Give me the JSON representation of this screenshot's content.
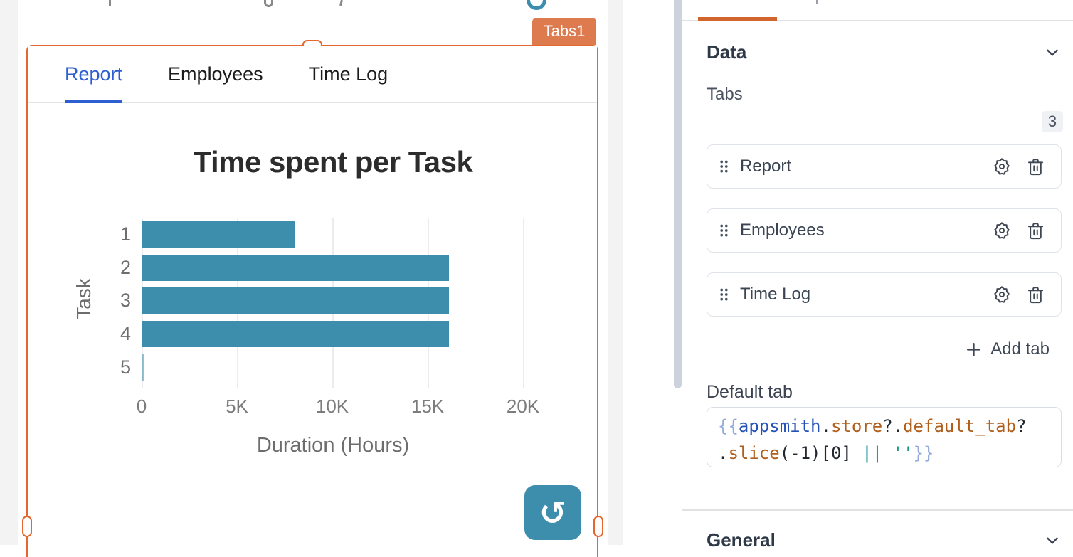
{
  "canvas": {
    "widget_badge": "Tabs1",
    "tab_widget_tabs": [
      {
        "label": "Report",
        "active": true
      },
      {
        "label": "Employees",
        "active": false
      },
      {
        "label": "Time Log",
        "active": false
      }
    ],
    "refresh_glyph": "↺"
  },
  "chart_data": {
    "type": "bar",
    "orientation": "horizontal",
    "title": "Time spent per Task",
    "categories": [
      "1",
      "2",
      "3",
      "4",
      "5"
    ],
    "values": [
      8060,
      16120,
      16120,
      16120,
      100
    ],
    "xlabel": "Duration (Hours)",
    "ylabel": "Task",
    "xlim": [
      0,
      20000
    ],
    "xticks": [
      {
        "label": "0",
        "value": 0
      },
      {
        "label": "5K",
        "value": 5000
      },
      {
        "label": "10K",
        "value": 10000
      },
      {
        "label": "15K",
        "value": 15000
      },
      {
        "label": "20K",
        "value": 20000
      }
    ],
    "grid": true,
    "legend": false,
    "bar_color": "#3d8ead"
  },
  "property_pane": {
    "data_section_title": "Data",
    "general_section_title": "General",
    "tabs_field_label": "Tabs",
    "tabs_count": "3",
    "tab_items": [
      {
        "label": "Report"
      },
      {
        "label": "Employees"
      },
      {
        "label": "Time Log"
      }
    ],
    "add_tab_label": "Add tab",
    "default_tab_label": "Default tab",
    "default_tab_code_text": "{{appsmith.store?.default_tab?.slice(-1)[0] || ''}}",
    "default_tab_code_lines": [
      [
        {
          "t": "{{",
          "s": "brace"
        },
        {
          "t": "appsmith",
          "s": "var"
        },
        {
          "t": ".",
          "s": "punct"
        },
        {
          "t": "store",
          "s": "prop"
        },
        {
          "t": "?.",
          "s": "punct"
        },
        {
          "t": "default_tab",
          "s": "prop"
        },
        {
          "t": "?",
          "s": "punct"
        }
      ],
      [
        {
          "t": ".",
          "s": "punct"
        },
        {
          "t": "slice",
          "s": "prop"
        },
        {
          "t": "(-1)[0] ",
          "s": "punct"
        },
        {
          "t": "||",
          "s": "op"
        },
        {
          "t": " ",
          "s": "punct"
        },
        {
          "t": "''",
          "s": "str"
        },
        {
          "t": "}}",
          "s": "brace"
        }
      ]
    ]
  },
  "colors": {
    "selection_orange": "#e5672e",
    "badge_orange": "#dd7a4e",
    "pane_underline_orange": "#d2652c",
    "teal": "#3d8ead",
    "active_tab_blue": "#2d5fd1",
    "code_brace": "#93a9de",
    "code_var": "#2452b8",
    "code_prop": "#b05e1b",
    "code_operator": "#1598a0",
    "code_string": "#159a7d"
  }
}
